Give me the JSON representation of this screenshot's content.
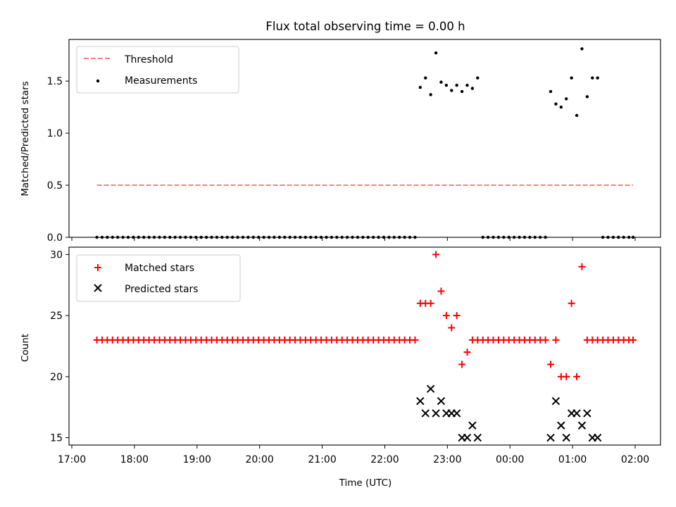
{
  "title": "Flux total observing time = 0.00 h",
  "chart_data": [
    {
      "type": "scatter",
      "panel": "top",
      "ylabel": "Matched/Predicted stars",
      "xlabel": "",
      "ylim": [
        0,
        1.9
      ],
      "yticks": [
        0.0,
        0.5,
        1.0,
        1.5
      ],
      "ytick_labels": [
        "0.0",
        "0.5",
        "1.0",
        "1.5"
      ],
      "legend_placement": "top-left",
      "threshold": {
        "name": "Threshold",
        "value": 0.5,
        "x_start": "17:24",
        "x_end": "01:58",
        "color": "#ff7f7f"
      },
      "series": [
        {
          "name": "Measurements",
          "color": "#000000",
          "points": [
            [
              "17:24",
              0
            ],
            [
              "17:29",
              0
            ],
            [
              "17:34",
              0
            ],
            [
              "17:39",
              0
            ],
            [
              "17:44",
              0
            ],
            [
              "17:49",
              0
            ],
            [
              "17:54",
              0
            ],
            [
              "17:59",
              0
            ],
            [
              "18:04",
              0
            ],
            [
              "18:09",
              0
            ],
            [
              "18:14",
              0
            ],
            [
              "18:19",
              0
            ],
            [
              "18:24",
              0
            ],
            [
              "18:29",
              0
            ],
            [
              "18:34",
              0
            ],
            [
              "18:39",
              0
            ],
            [
              "18:44",
              0
            ],
            [
              "18:49",
              0
            ],
            [
              "18:54",
              0
            ],
            [
              "18:59",
              0
            ],
            [
              "19:04",
              0
            ],
            [
              "19:09",
              0
            ],
            [
              "19:14",
              0
            ],
            [
              "19:19",
              0
            ],
            [
              "19:24",
              0
            ],
            [
              "19:29",
              0
            ],
            [
              "19:34",
              0
            ],
            [
              "19:39",
              0
            ],
            [
              "19:44",
              0
            ],
            [
              "19:49",
              0
            ],
            [
              "19:54",
              0
            ],
            [
              "19:59",
              0
            ],
            [
              "20:04",
              0
            ],
            [
              "20:09",
              0
            ],
            [
              "20:14",
              0
            ],
            [
              "20:19",
              0
            ],
            [
              "20:24",
              0
            ],
            [
              "20:29",
              0
            ],
            [
              "20:34",
              0
            ],
            [
              "20:39",
              0
            ],
            [
              "20:44",
              0
            ],
            [
              "20:49",
              0
            ],
            [
              "20:54",
              0
            ],
            [
              "20:59",
              0
            ],
            [
              "21:04",
              0
            ],
            [
              "21:09",
              0
            ],
            [
              "21:14",
              0
            ],
            [
              "21:19",
              0
            ],
            [
              "21:24",
              0
            ],
            [
              "21:29",
              0
            ],
            [
              "21:34",
              0
            ],
            [
              "21:39",
              0
            ],
            [
              "21:44",
              0
            ],
            [
              "21:49",
              0
            ],
            [
              "21:54",
              0
            ],
            [
              "21:59",
              0
            ],
            [
              "22:04",
              0
            ],
            [
              "22:09",
              0
            ],
            [
              "22:14",
              0
            ],
            [
              "22:19",
              0
            ],
            [
              "22:24",
              0
            ],
            [
              "22:29",
              0
            ],
            [
              "22:34",
              1.44
            ],
            [
              "22:39",
              1.53
            ],
            [
              "22:44",
              1.37
            ],
            [
              "22:49",
              1.77
            ],
            [
              "22:54",
              1.49
            ],
            [
              "22:59",
              1.46
            ],
            [
              "23:04",
              1.41
            ],
            [
              "23:09",
              1.46
            ],
            [
              "23:14",
              1.4
            ],
            [
              "23:19",
              1.46
            ],
            [
              "23:24",
              1.43
            ],
            [
              "23:29",
              1.53
            ],
            [
              "23:34",
              0
            ],
            [
              "23:39",
              0
            ],
            [
              "23:44",
              0
            ],
            [
              "23:49",
              0
            ],
            [
              "23:54",
              0
            ],
            [
              "23:59",
              0
            ],
            [
              "00:04",
              0
            ],
            [
              "00:09",
              0
            ],
            [
              "00:14",
              0
            ],
            [
              "00:19",
              0
            ],
            [
              "00:24",
              0
            ],
            [
              "00:29",
              0
            ],
            [
              "00:34",
              0
            ],
            [
              "00:39",
              1.4
            ],
            [
              "00:44",
              1.28
            ],
            [
              "00:49",
              1.25
            ],
            [
              "00:54",
              1.33
            ],
            [
              "00:59",
              1.53
            ],
            [
              "01:04",
              1.17
            ],
            [
              "01:09",
              1.81
            ],
            [
              "01:14",
              1.35
            ],
            [
              "01:19",
              1.53
            ],
            [
              "01:24",
              1.53
            ],
            [
              "01:29",
              0
            ],
            [
              "01:34",
              0
            ],
            [
              "01:39",
              0
            ],
            [
              "01:44",
              0
            ],
            [
              "01:49",
              0
            ],
            [
              "01:54",
              0
            ],
            [
              "01:58",
              0
            ]
          ]
        }
      ]
    },
    {
      "type": "scatter",
      "panel": "bottom",
      "ylabel": "Count",
      "xlabel": "Time (UTC)",
      "ylim": [
        14.4,
        30.6
      ],
      "yticks": [
        15,
        20,
        25,
        30
      ],
      "ytick_labels": [
        "15",
        "20",
        "25",
        "30"
      ],
      "xtick_labels": [
        "17:00",
        "18:00",
        "19:00",
        "20:00",
        "21:00",
        "22:00",
        "23:00",
        "00:00",
        "01:00",
        "02:00"
      ],
      "legend_placement": "top-left",
      "series": [
        {
          "name": "Matched stars",
          "marker": "plus",
          "color": "#ff0000",
          "points": [
            [
              "17:24",
              23
            ],
            [
              "17:29",
              23
            ],
            [
              "17:34",
              23
            ],
            [
              "17:39",
              23
            ],
            [
              "17:44",
              23
            ],
            [
              "17:49",
              23
            ],
            [
              "17:54",
              23
            ],
            [
              "17:59",
              23
            ],
            [
              "18:04",
              23
            ],
            [
              "18:09",
              23
            ],
            [
              "18:14",
              23
            ],
            [
              "18:19",
              23
            ],
            [
              "18:24",
              23
            ],
            [
              "18:29",
              23
            ],
            [
              "18:34",
              23
            ],
            [
              "18:39",
              23
            ],
            [
              "18:44",
              23
            ],
            [
              "18:49",
              23
            ],
            [
              "18:54",
              23
            ],
            [
              "18:59",
              23
            ],
            [
              "19:04",
              23
            ],
            [
              "19:09",
              23
            ],
            [
              "19:14",
              23
            ],
            [
              "19:19",
              23
            ],
            [
              "19:24",
              23
            ],
            [
              "19:29",
              23
            ],
            [
              "19:34",
              23
            ],
            [
              "19:39",
              23
            ],
            [
              "19:44",
              23
            ],
            [
              "19:49",
              23
            ],
            [
              "19:54",
              23
            ],
            [
              "19:59",
              23
            ],
            [
              "20:04",
              23
            ],
            [
              "20:09",
              23
            ],
            [
              "20:14",
              23
            ],
            [
              "20:19",
              23
            ],
            [
              "20:24",
              23
            ],
            [
              "20:29",
              23
            ],
            [
              "20:34",
              23
            ],
            [
              "20:39",
              23
            ],
            [
              "20:44",
              23
            ],
            [
              "20:49",
              23
            ],
            [
              "20:54",
              23
            ],
            [
              "20:59",
              23
            ],
            [
              "21:04",
              23
            ],
            [
              "21:09",
              23
            ],
            [
              "21:14",
              23
            ],
            [
              "21:19",
              23
            ],
            [
              "21:24",
              23
            ],
            [
              "21:29",
              23
            ],
            [
              "21:34",
              23
            ],
            [
              "21:39",
              23
            ],
            [
              "21:44",
              23
            ],
            [
              "21:49",
              23
            ],
            [
              "21:54",
              23
            ],
            [
              "21:59",
              23
            ],
            [
              "22:04",
              23
            ],
            [
              "22:09",
              23
            ],
            [
              "22:14",
              23
            ],
            [
              "22:19",
              23
            ],
            [
              "22:24",
              23
            ],
            [
              "22:29",
              23
            ],
            [
              "22:34",
              26
            ],
            [
              "22:39",
              26
            ],
            [
              "22:44",
              26
            ],
            [
              "22:49",
              30
            ],
            [
              "22:54",
              27
            ],
            [
              "22:59",
              25
            ],
            [
              "23:04",
              24
            ],
            [
              "23:09",
              25
            ],
            [
              "23:14",
              21
            ],
            [
              "23:19",
              22
            ],
            [
              "23:24",
              23
            ],
            [
              "23:29",
              23
            ],
            [
              "23:34",
              23
            ],
            [
              "23:39",
              23
            ],
            [
              "23:44",
              23
            ],
            [
              "23:49",
              23
            ],
            [
              "23:54",
              23
            ],
            [
              "23:59",
              23
            ],
            [
              "00:04",
              23
            ],
            [
              "00:09",
              23
            ],
            [
              "00:14",
              23
            ],
            [
              "00:19",
              23
            ],
            [
              "00:24",
              23
            ],
            [
              "00:29",
              23
            ],
            [
              "00:34",
              23
            ],
            [
              "00:39",
              21
            ],
            [
              "00:44",
              23
            ],
            [
              "00:49",
              20
            ],
            [
              "00:54",
              20
            ],
            [
              "00:59",
              26
            ],
            [
              "01:04",
              20
            ],
            [
              "01:09",
              29
            ],
            [
              "01:14",
              23
            ],
            [
              "01:19",
              23
            ],
            [
              "01:24",
              23
            ],
            [
              "01:29",
              23
            ],
            [
              "01:34",
              23
            ],
            [
              "01:39",
              23
            ],
            [
              "01:44",
              23
            ],
            [
              "01:49",
              23
            ],
            [
              "01:54",
              23
            ],
            [
              "01:58",
              23
            ]
          ]
        },
        {
          "name": "Predicted stars",
          "marker": "x",
          "color": "#000000",
          "points": [
            [
              "22:34",
              18
            ],
            [
              "22:39",
              17
            ],
            [
              "22:44",
              19
            ],
            [
              "22:49",
              17
            ],
            [
              "22:54",
              18
            ],
            [
              "22:59",
              17
            ],
            [
              "23:04",
              17
            ],
            [
              "23:09",
              17
            ],
            [
              "23:14",
              15
            ],
            [
              "23:19",
              15
            ],
            [
              "23:24",
              16
            ],
            [
              "23:29",
              15
            ],
            [
              "00:39",
              15
            ],
            [
              "00:44",
              18
            ],
            [
              "00:49",
              16
            ],
            [
              "00:54",
              15
            ],
            [
              "00:59",
              17
            ],
            [
              "01:04",
              17
            ],
            [
              "01:09",
              16
            ],
            [
              "01:14",
              17
            ],
            [
              "01:19",
              15
            ],
            [
              "01:24",
              15
            ]
          ]
        }
      ]
    }
  ]
}
